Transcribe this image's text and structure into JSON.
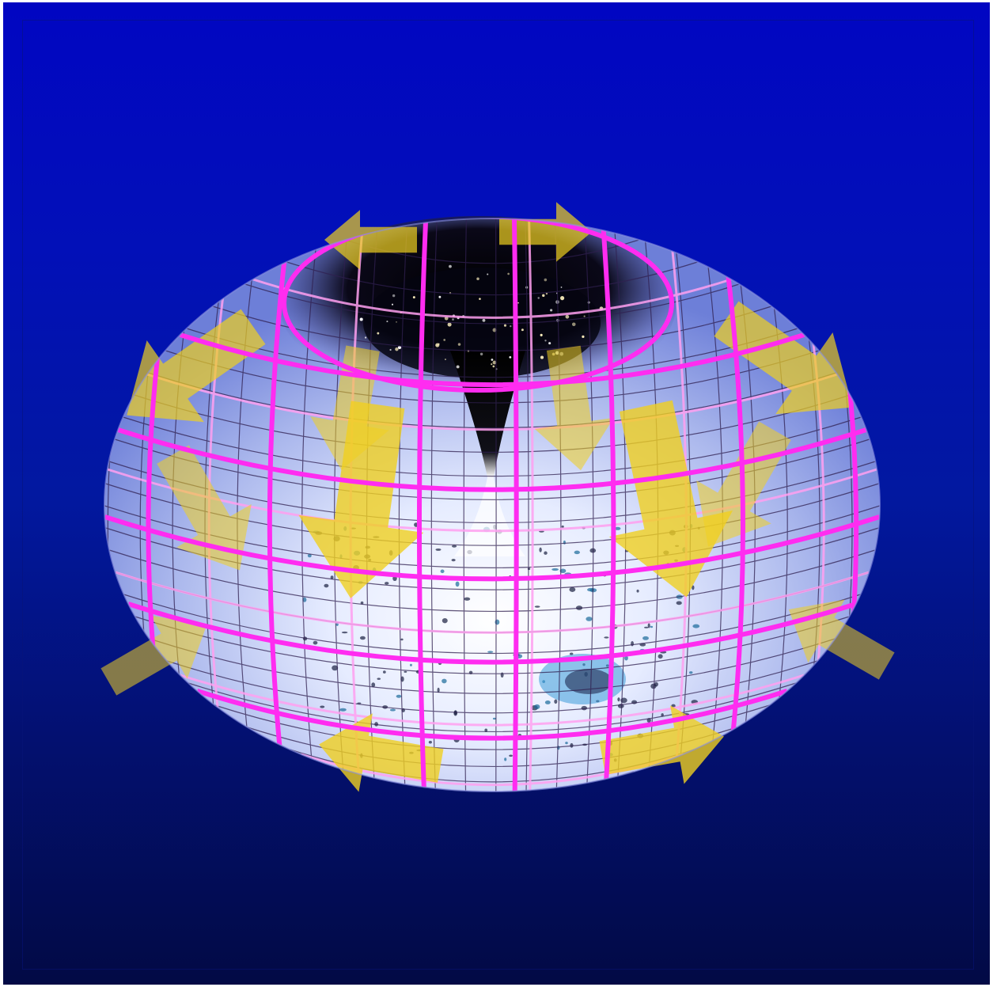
{
  "colors": {
    "background_top": "#0106c2",
    "background_bottom": "#020a45",
    "grid_major": "#ff2cf0",
    "grid_minor": "#ffa0f0",
    "grid_fine": "#302050",
    "arrow": "#f0d020",
    "torus_light": "#f4f6ff",
    "torus_mid": "#a9b6ec",
    "center_dark": "#050510"
  },
  "icons": {
    "arrows": "yellow-flow-arrow-icon"
  }
}
